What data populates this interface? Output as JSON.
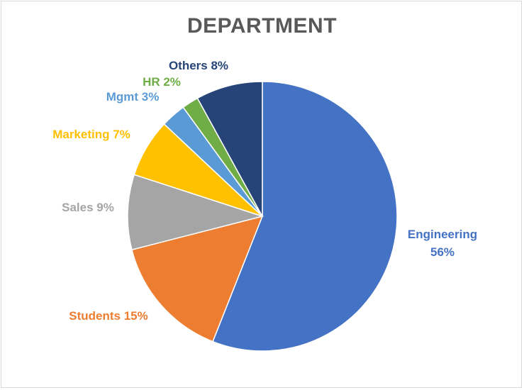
{
  "chart_data": {
    "type": "pie",
    "title": "DEPARTMENT",
    "slices": [
      {
        "label": "Engineering",
        "percent_text": "56%",
        "value": 56,
        "color": "#4472C4"
      },
      {
        "label": "Students",
        "percent_text": "15%",
        "value": 15,
        "color": "#ED7D31"
      },
      {
        "label": "Sales",
        "percent_text": "9%",
        "value": 9,
        "color": "#A5A5A5"
      },
      {
        "label": "Marketing",
        "percent_text": "7%",
        "value": 7,
        "color": "#FFC000"
      },
      {
        "label": "Mgmt",
        "percent_text": "3%",
        "value": 3,
        "color": "#5B9BD5"
      },
      {
        "label": "HR",
        "percent_text": "2%",
        "value": 2,
        "color": "#70AD47"
      },
      {
        "label": "Others",
        "percent_text": "8%",
        "value": 8,
        "color": "#264478"
      }
    ]
  }
}
